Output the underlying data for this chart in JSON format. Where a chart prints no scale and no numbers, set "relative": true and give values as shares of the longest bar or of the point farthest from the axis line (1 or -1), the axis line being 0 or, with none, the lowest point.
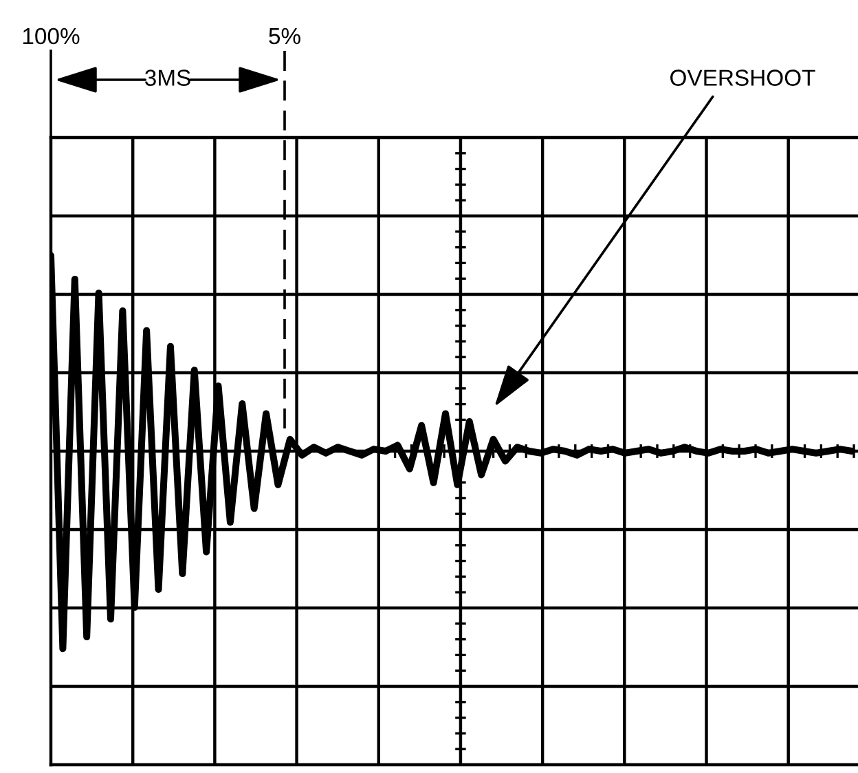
{
  "chart_data": {
    "type": "line",
    "relative": true,
    "grid": true,
    "color": "#000000",
    "categories": [
      null,
      null,
      null,
      null,
      null,
      null,
      null,
      null,
      null,
      null,
      null,
      null,
      null,
      null,
      null,
      null,
      null,
      null,
      null,
      null,
      null,
      null,
      null,
      null,
      null,
      null,
      null,
      null,
      null,
      null,
      null,
      null,
      null,
      null,
      null,
      null,
      null,
      null,
      null,
      null,
      null,
      null,
      null,
      null,
      null,
      null,
      null,
      null,
      null,
      null,
      null,
      null,
      null,
      null,
      null,
      null,
      null,
      null,
      null,
      null,
      null,
      null,
      null,
      null,
      null,
      null,
      null,
      null
    ],
    "values": [
      0.99,
      -1.0,
      0.87,
      -0.94,
      0.8,
      -0.85,
      0.71,
      -0.79,
      0.61,
      -0.7,
      0.53,
      -0.62,
      0.41,
      -0.51,
      0.33,
      -0.36,
      0.24,
      -0.29,
      0.19,
      -0.17,
      0.06,
      -0.02,
      0.02,
      -0.01,
      0.02,
      0.0,
      -0.02,
      0.01,
      0.0,
      0.03,
      -0.09,
      0.13,
      -0.16,
      0.19,
      -0.17,
      0.15,
      -0.12,
      0.06,
      -0.05,
      0.02,
      0.0,
      -0.01,
      0.01,
      0.0,
      -0.02,
      0.01,
      0.0,
      0.01,
      -0.01,
      0.0,
      0.01,
      -0.01,
      0.0,
      0.02,
      0.0,
      -0.01,
      0.01,
      0.0,
      0.0,
      0.01,
      -0.01,
      0.0,
      0.01,
      0.0,
      -0.01,
      0.0,
      0.01,
      0.0
    ],
    "annotations": [
      "100%",
      "5%",
      "3MS",
      "OVERSHOOT"
    ]
  }
}
